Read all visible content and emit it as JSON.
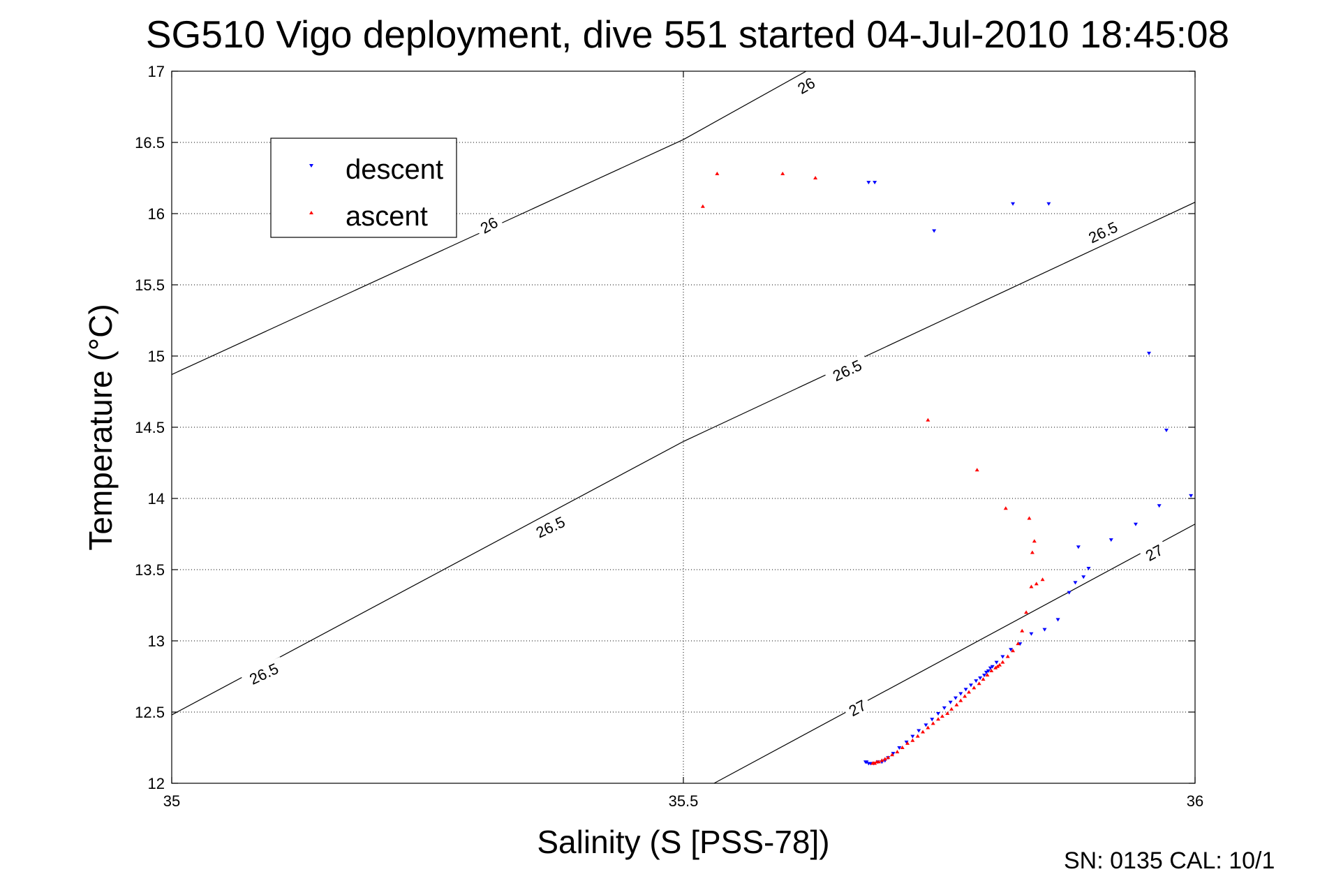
{
  "chart_data": {
    "type": "scatter",
    "title": "SG510 Vigo deployment, dive 551 started 04-Jul-2010 18:45:08",
    "xlabel": "Salinity (S [PSS-78])",
    "ylabel": "Temperature (°C)",
    "xlim": [
      35,
      36
    ],
    "ylim": [
      12,
      17
    ],
    "x_ticks": [
      "35",
      "35.5",
      "36"
    ],
    "y_ticks": [
      "12",
      "12.5",
      "13",
      "13.5",
      "14",
      "14.5",
      "15",
      "15.5",
      "16",
      "16.5",
      "17"
    ],
    "grid": true,
    "legend_position": "top-left",
    "series": [
      {
        "name": "descent",
        "color": "#0000ff",
        "marker": "triangle-down",
        "x": [
          35.687,
          35.681,
          35.822,
          35.857,
          35.745,
          35.955,
          35.972,
          35.996,
          35.965,
          35.942,
          35.918,
          35.886,
          35.896,
          35.891,
          35.883,
          35.877,
          35.866,
          35.853,
          35.84,
          35.829,
          35.82,
          35.812,
          35.806,
          35.802,
          35.8,
          35.798,
          35.796,
          35.794,
          35.79,
          35.786,
          35.781,
          35.776,
          35.771,
          35.766,
          35.761,
          35.755,
          35.749,
          35.743,
          35.737,
          35.73,
          35.724,
          35.718,
          35.711,
          35.705,
          35.7,
          35.697,
          35.694,
          35.69,
          35.686,
          35.683,
          35.681,
          35.679,
          35.678
        ],
        "y": [
          16.22,
          16.22,
          16.07,
          16.07,
          15.88,
          15.02,
          14.48,
          14.02,
          13.95,
          13.82,
          13.71,
          13.66,
          13.51,
          13.45,
          13.41,
          13.34,
          13.15,
          13.08,
          13.05,
          12.98,
          12.94,
          12.89,
          12.85,
          12.82,
          12.81,
          12.79,
          12.78,
          12.76,
          12.74,
          12.72,
          12.69,
          12.66,
          12.63,
          12.6,
          12.57,
          12.53,
          12.49,
          12.45,
          12.41,
          12.37,
          12.33,
          12.29,
          12.25,
          12.21,
          12.18,
          12.16,
          12.15,
          12.15,
          12.14,
          12.14,
          12.14,
          12.15,
          12.15
        ]
      },
      {
        "name": "ascent",
        "color": "#ff0000",
        "marker": "triangle-up",
        "x": [
          35.519,
          35.533,
          35.597,
          35.629,
          35.739,
          35.787,
          35.815,
          35.838,
          35.843,
          35.841,
          35.845,
          35.851,
          35.84,
          35.835,
          35.831,
          35.827,
          35.822,
          35.817,
          35.812,
          35.809,
          35.807,
          35.805,
          35.801,
          35.797,
          35.793,
          35.789,
          35.784,
          35.779,
          35.775,
          35.771,
          35.767,
          35.762,
          35.758,
          35.753,
          35.749,
          35.744,
          35.739,
          35.734,
          35.729,
          35.724,
          35.719,
          35.714,
          35.709,
          35.704,
          35.7,
          35.697,
          35.694,
          35.691,
          35.689,
          35.687,
          35.686,
          35.685
        ],
        "y": [
          16.05,
          16.28,
          16.28,
          16.25,
          14.55,
          14.2,
          13.93,
          13.86,
          13.7,
          13.62,
          13.4,
          13.43,
          13.38,
          13.2,
          13.07,
          12.98,
          12.93,
          12.89,
          12.85,
          12.83,
          12.82,
          12.81,
          12.79,
          12.76,
          12.73,
          12.7,
          12.67,
          12.64,
          12.61,
          12.58,
          12.55,
          12.52,
          12.49,
          12.47,
          12.45,
          12.42,
          12.39,
          12.36,
          12.33,
          12.3,
          12.28,
          12.25,
          12.22,
          12.2,
          12.18,
          12.17,
          12.16,
          12.15,
          12.15,
          12.14,
          12.14,
          12.14
        ]
      }
    ],
    "contours": [
      {
        "label": "26",
        "points": [
          [
            35,
            14.87
          ],
          [
            35.5,
            16.52
          ],
          [
            35.62,
            17
          ]
        ],
        "label_positions": [
          [
            35.62,
            16.9
          ],
          [
            35.31,
            15.92
          ]
        ]
      },
      {
        "label": "26.5",
        "points": [
          [
            35,
            12.48
          ],
          [
            35.5,
            14.4
          ],
          [
            36,
            16.08
          ]
        ],
        "label_positions": [
          [
            35.91,
            15.87
          ],
          [
            35.66,
            14.9
          ],
          [
            35.37,
            13.8
          ],
          [
            35.09,
            12.77
          ]
        ]
      },
      {
        "label": "27",
        "points": [
          [
            35.53,
            12
          ],
          [
            36,
            13.82
          ]
        ],
        "label_positions": [
          [
            35.96,
            13.62
          ],
          [
            35.67,
            12.53
          ]
        ]
      }
    ]
  },
  "footer": {
    "sn_cal": "SN: 0135  CAL: 10/1"
  }
}
